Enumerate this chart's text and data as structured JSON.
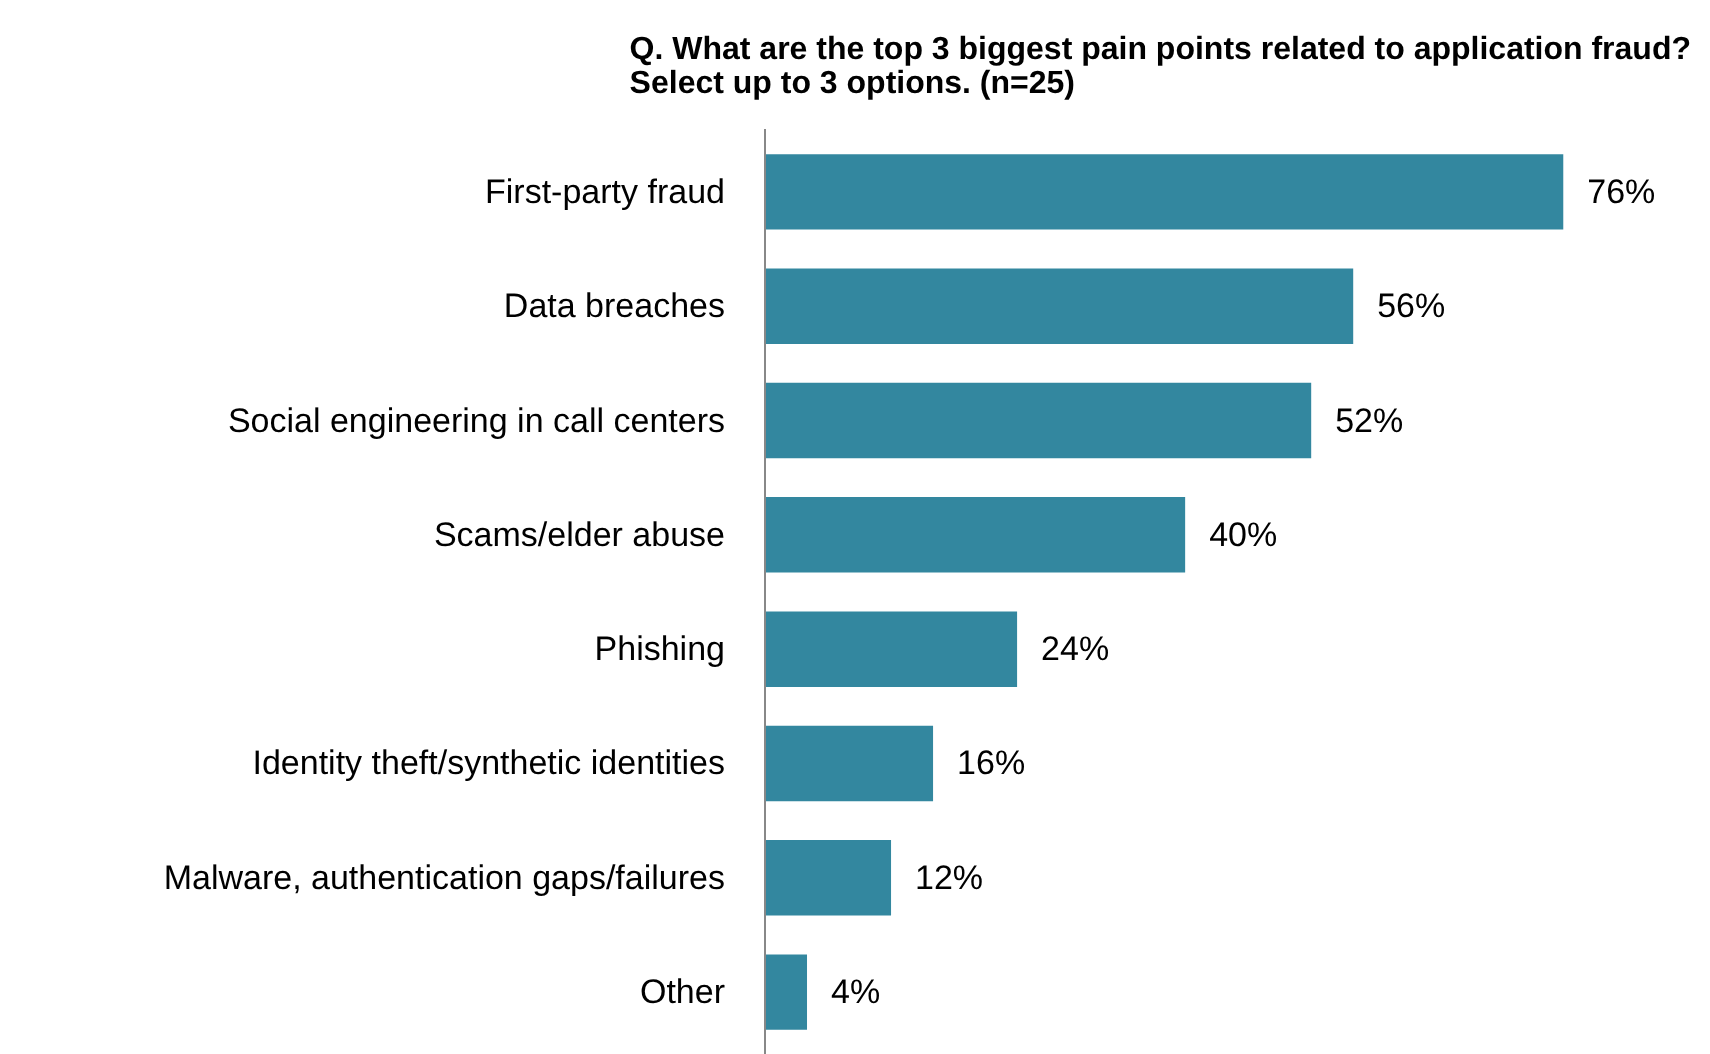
{
  "chart_data": {
    "type": "bar",
    "orientation": "horizontal",
    "title": "Q. What are the top 3 biggest pain points related to application fraud?\nSelect up to 3 options. (n=25)",
    "categories": [
      "First-party fraud",
      "Data breaches",
      "Social engineering in call centers",
      "Scams/elder abuse",
      "Phishing",
      "Identity theft/synthetic identities",
      "Malware, authentication gaps/failures",
      "Other"
    ],
    "values": [
      76,
      56,
      52,
      40,
      24,
      16,
      12,
      4
    ],
    "value_labels": [
      "76%",
      "56%",
      "52%",
      "40%",
      "24%",
      "16%",
      "12%",
      "4%"
    ],
    "color": "#33879f",
    "grid": false
  }
}
